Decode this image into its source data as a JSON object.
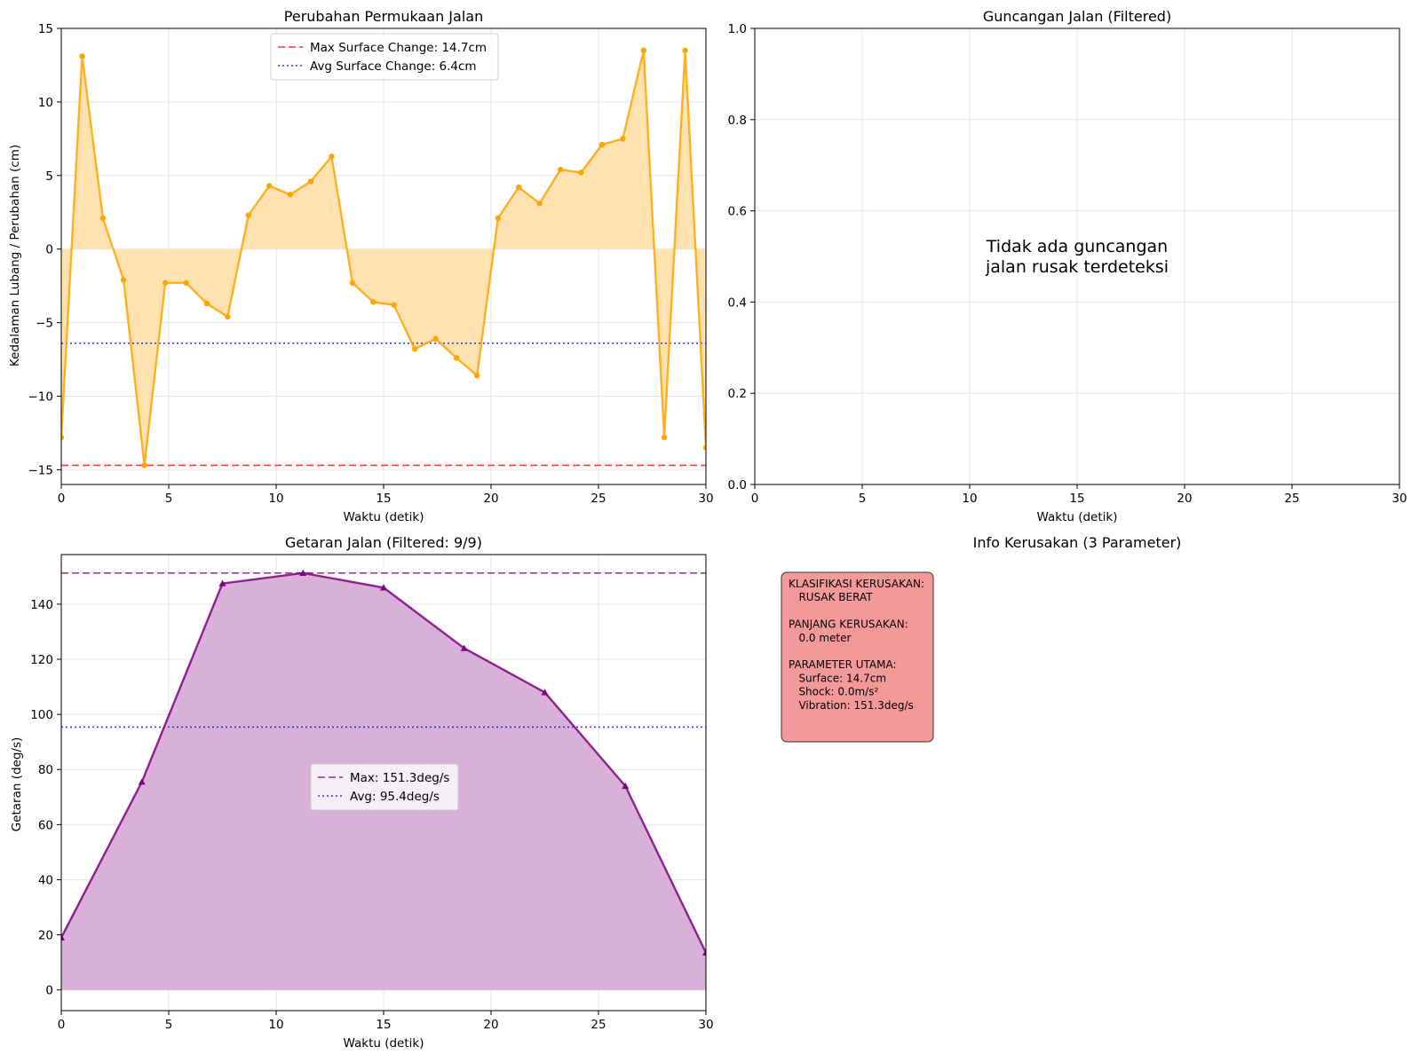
{
  "chart_data": [
    {
      "type": "line",
      "title": "Perubahan Permukaan Jalan",
      "xlabel": "Waktu (detik)",
      "ylabel": "Kedalaman Lubang / Perubahan (cm)",
      "xlim": [
        0,
        30
      ],
      "ylim": [
        -16,
        15
      ],
      "xticks": [
        0,
        5,
        10,
        15,
        20,
        25,
        30
      ],
      "yticks": [
        -15,
        -10,
        -5,
        0,
        5,
        10,
        15
      ],
      "grid": true,
      "legend_position": "top-center",
      "fill_to_zero": true,
      "series": [
        {
          "name": "",
          "color": "#FFA500",
          "fill_color": "#FFE2B0",
          "marker": "circle",
          "x": [
            0,
            0.97,
            1.94,
            2.9,
            3.87,
            4.84,
            5.81,
            6.77,
            7.74,
            8.71,
            9.68,
            10.65,
            11.61,
            12.58,
            13.55,
            14.52,
            15.48,
            16.45,
            17.42,
            18.39,
            19.35,
            20.32,
            21.29,
            22.26,
            23.23,
            24.19,
            25.16,
            26.13,
            27.1,
            28.06,
            29.03,
            30
          ],
          "values": [
            -12.8,
            13.1,
            2.1,
            -2.1,
            -14.7,
            -2.3,
            -2.3,
            -3.7,
            -4.6,
            2.3,
            4.3,
            3.7,
            4.6,
            6.3,
            -2.3,
            -3.6,
            -3.8,
            -6.8,
            -6.1,
            -7.4,
            -8.6,
            2.1,
            4.2,
            3.1,
            5.4,
            5.2,
            7.1,
            7.5,
            13.5,
            -12.8,
            13.5,
            -13.5
          ]
        }
      ],
      "reference_lines": [
        {
          "label": "Max Surface Change: 14.7cm",
          "y": -14.7,
          "color": "#FF0000",
          "style": "dashed"
        },
        {
          "label": "Avg Surface Change: 6.4cm",
          "y": -6.4,
          "color": "#0000FF",
          "style": "dotted"
        }
      ]
    },
    {
      "type": "line",
      "title": "Guncangan Jalan (Filtered)",
      "xlabel": "Waktu (detik)",
      "ylabel": "",
      "xlim": [
        0,
        30
      ],
      "ylim": [
        0,
        1
      ],
      "xticks": [
        0,
        5,
        10,
        15,
        20,
        25,
        30
      ],
      "yticks": [
        0.0,
        0.2,
        0.4,
        0.6,
        0.8,
        1.0
      ],
      "grid": true,
      "series": [],
      "annotation": [
        "Tidak ada guncangan",
        "jalan rusak terdeteksi"
      ]
    },
    {
      "type": "area",
      "title": "Getaran Jalan (Filtered: 9/9)",
      "xlabel": "Waktu (detik)",
      "ylabel": "Getaran (deg/s)",
      "xlim": [
        0,
        30
      ],
      "ylim": [
        -7.5,
        158
      ],
      "xticks": [
        0,
        5,
        10,
        15,
        20,
        25,
        30
      ],
      "yticks": [
        0,
        20,
        40,
        60,
        80,
        100,
        120,
        140
      ],
      "grid": true,
      "legend_position": "center",
      "series": [
        {
          "name": "",
          "color": "#800080",
          "fill_color": "#D8B0D8",
          "marker": "triangle",
          "x": [
            0,
            3.75,
            7.5,
            11.25,
            15,
            18.75,
            22.5,
            26.25,
            30
          ],
          "values": [
            19,
            75.5,
            147.5,
            151.3,
            146,
            124,
            108,
            74,
            13.5
          ]
        }
      ],
      "reference_lines": [
        {
          "label": "Max: 151.3deg/s",
          "y": 151.3,
          "color": "#800080",
          "style": "dashed"
        },
        {
          "label": "Avg: 95.4deg/s",
          "y": 95.4,
          "color": "#0000FF",
          "style": "dotted"
        }
      ]
    }
  ],
  "info_panel": {
    "title": "Info Kerusakan (3 Parameter)",
    "box_color": "#F4999A",
    "lines": [
      "KLASIFIKASI KERUSAKAN:",
      "   RUSAK BERAT",
      "",
      "PANJANG KERUSAKAN:",
      "   0.0 meter",
      "",
      "PARAMETER UTAMA:",
      "   Surface: 14.7cm",
      "   Shock: 0.0m/s²",
      "   Vibration: 151.3deg/s"
    ]
  }
}
